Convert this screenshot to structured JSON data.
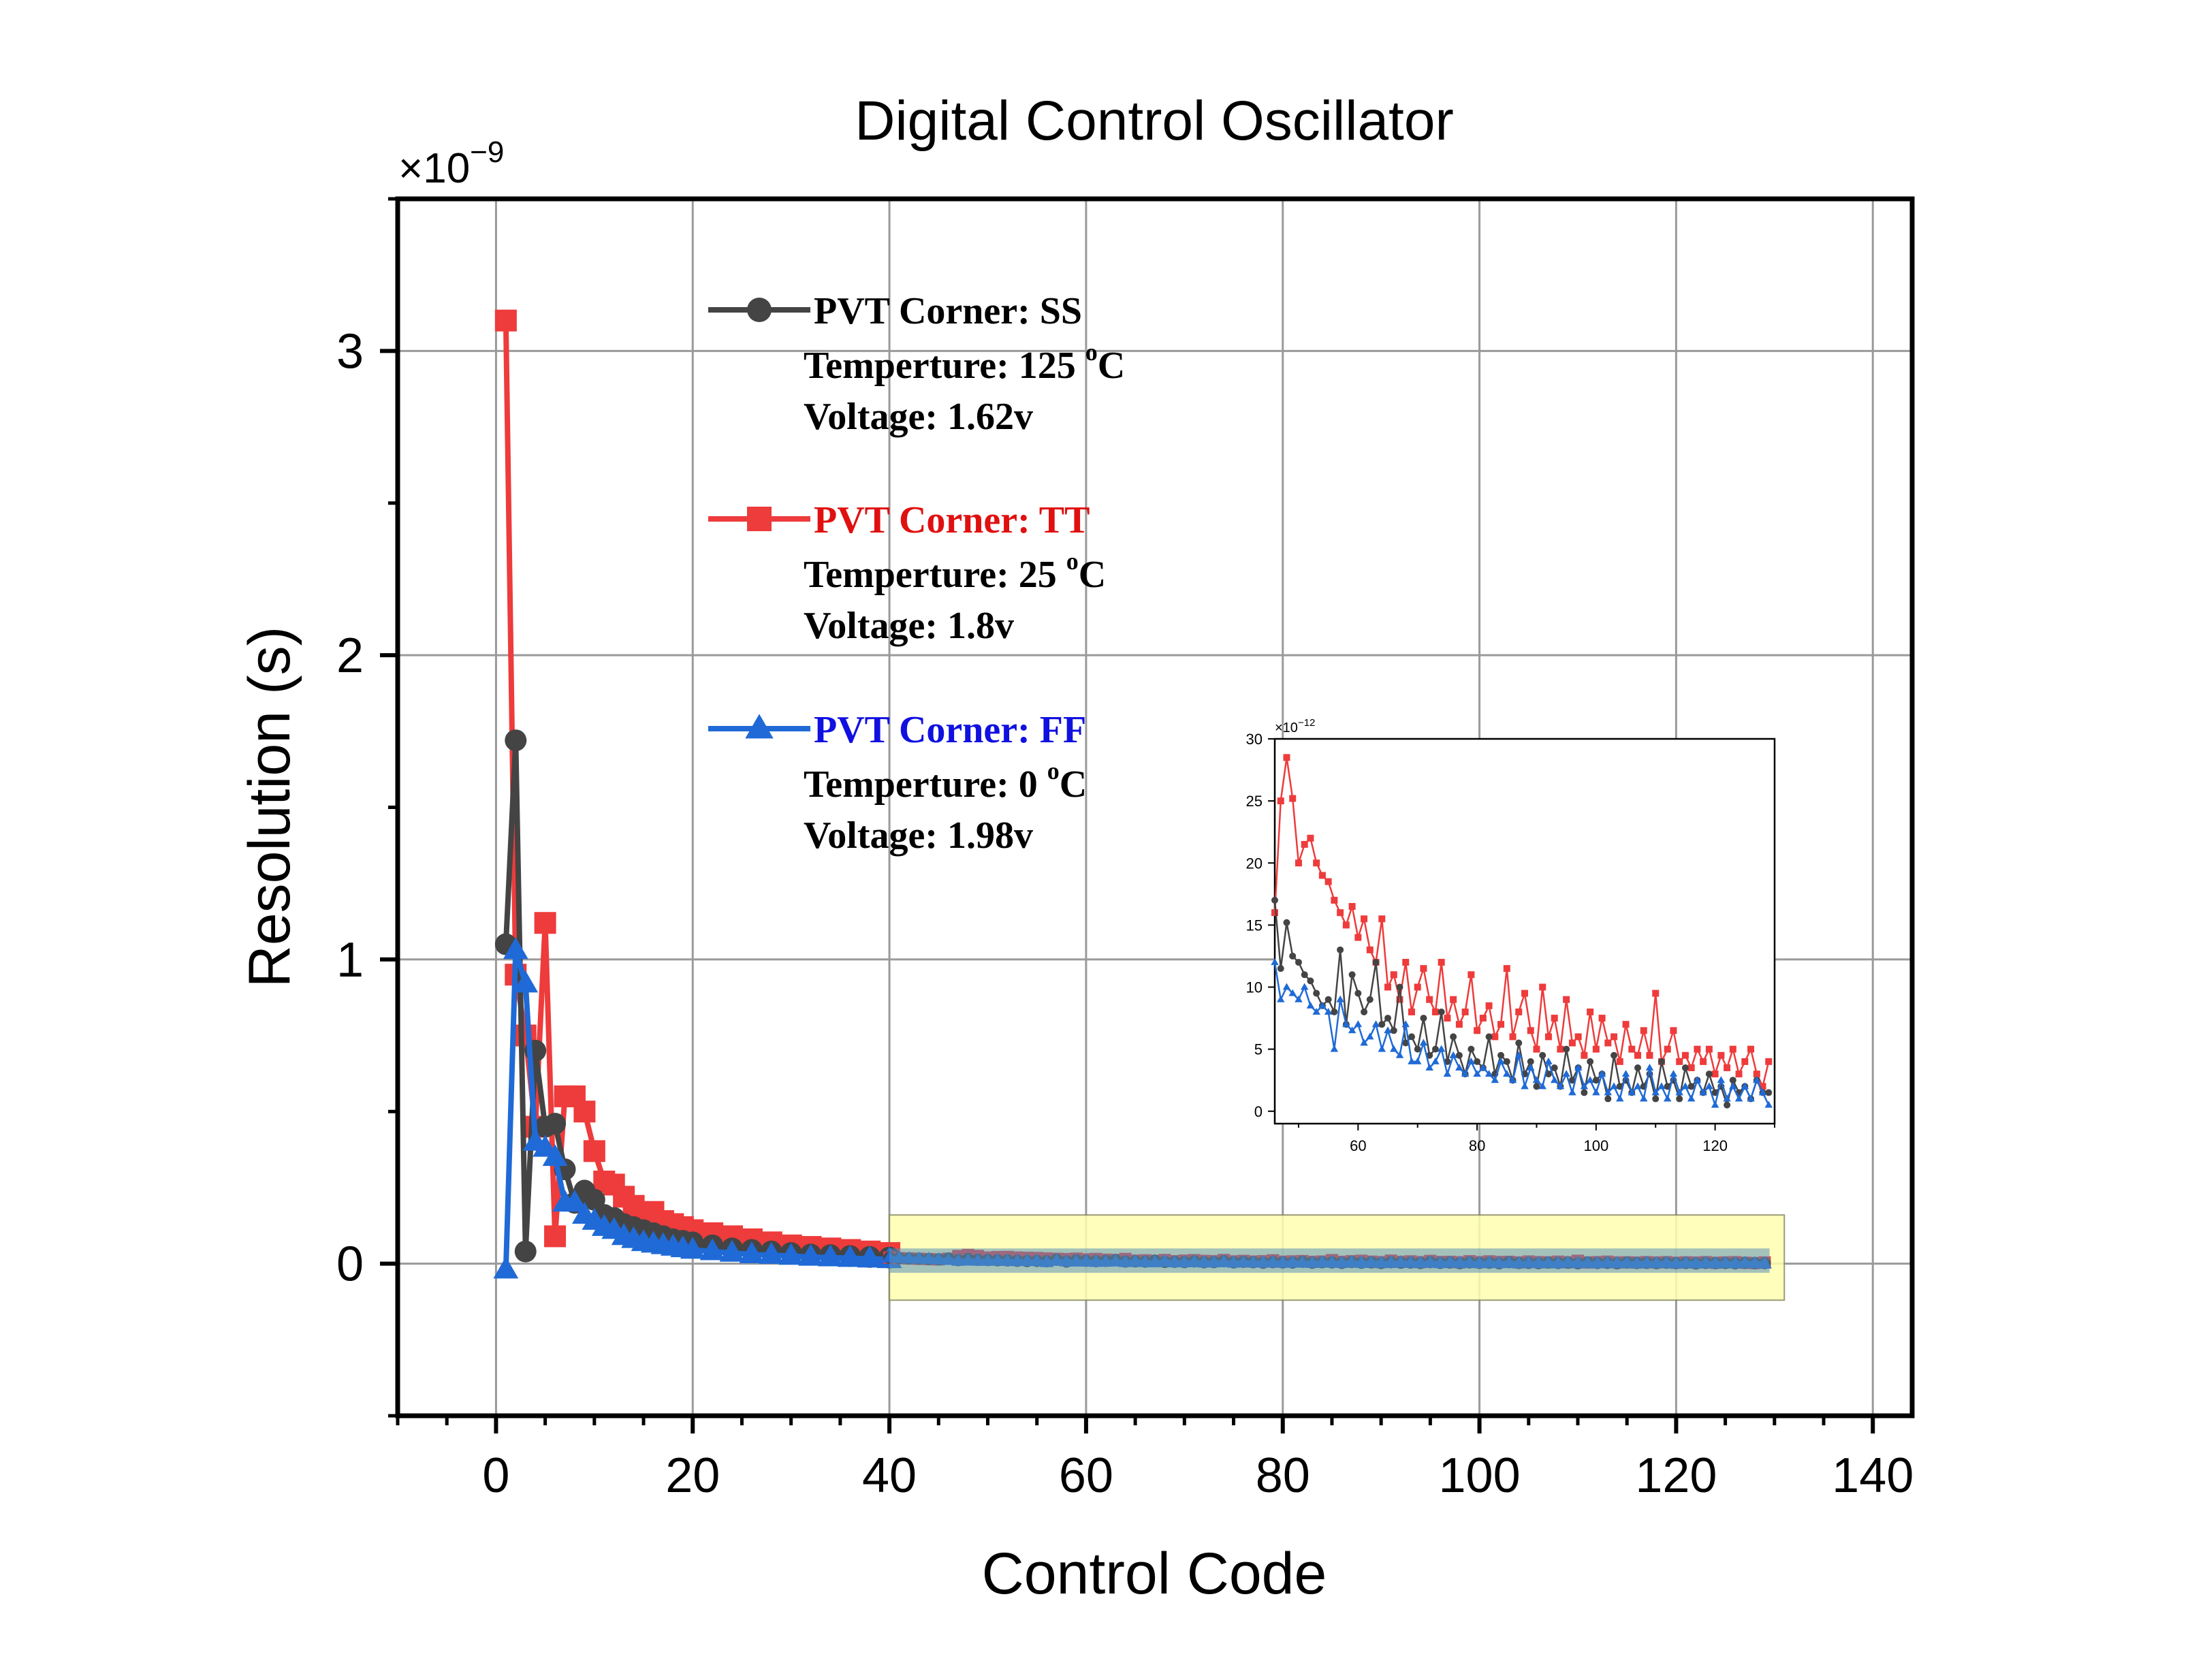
{
  "chart_data": {
    "type": "line",
    "title": "Digital Control Oscillator",
    "xlabel": "Control Code",
    "ylabel": "Resolution (s)",
    "y_multiplier": "×10",
    "y_multiplier_exp": "−9",
    "xlim": [
      -10,
      144
    ],
    "ylim": [
      -0.5,
      3.5
    ],
    "x_ticks": [
      "0",
      "20",
      "40",
      "60",
      "80",
      "100",
      "120",
      "140"
    ],
    "x_tick_values": [
      0,
      20,
      40,
      60,
      80,
      100,
      120,
      140
    ],
    "y_ticks": [
      "0",
      "1",
      "2",
      "3"
    ],
    "y_tick_values": [
      0,
      1,
      2,
      3
    ],
    "grid": true,
    "legend_position": "top-center",
    "series": [
      {
        "name": "PVT Corner: SS",
        "color": "#444444",
        "marker": "circle",
        "x": [
          1,
          2,
          3,
          4,
          5,
          6,
          7,
          8,
          9,
          10,
          11,
          12,
          13,
          14,
          15,
          16,
          17,
          18,
          19,
          20,
          22,
          24,
          26,
          28,
          30,
          32,
          34,
          36,
          38,
          40
        ],
        "y": [
          1.05,
          1.72,
          0.04,
          0.7,
          0.45,
          0.46,
          0.31,
          0.2,
          0.24,
          0.21,
          0.16,
          0.15,
          0.13,
          0.12,
          0.11,
          0.1,
          0.09,
          0.08,
          0.075,
          0.07,
          0.06,
          0.05,
          0.045,
          0.04,
          0.035,
          0.03,
          0.028,
          0.025,
          0.022,
          0.02
        ]
      },
      {
        "name": "PVT Corner: TT",
        "color": "#ee3b3b",
        "marker": "square",
        "x": [
          1,
          2,
          3,
          4,
          5,
          6,
          7,
          8,
          9,
          10,
          11,
          12,
          13,
          14,
          15,
          16,
          17,
          18,
          19,
          20,
          22,
          24,
          26,
          28,
          30,
          32,
          34,
          36,
          38,
          40
        ],
        "y": [
          3.1,
          0.95,
          0.75,
          0.45,
          1.12,
          0.09,
          0.55,
          0.55,
          0.5,
          0.37,
          0.27,
          0.26,
          0.22,
          0.19,
          0.16,
          0.17,
          0.14,
          0.13,
          0.12,
          0.11,
          0.1,
          0.09,
          0.08,
          0.07,
          0.06,
          0.055,
          0.05,
          0.045,
          0.04,
          0.035
        ]
      },
      {
        "name": "PVT Corner: FF",
        "color": "#1f6ad6",
        "marker": "triangle",
        "x": [
          1,
          2,
          3,
          4,
          5,
          6,
          7,
          8,
          9,
          10,
          11,
          12,
          13,
          14,
          15,
          16,
          17,
          18,
          19,
          20,
          22,
          24,
          26,
          28,
          30,
          32,
          34,
          36,
          38,
          40
        ],
        "y": [
          -0.02,
          1.03,
          0.92,
          0.4,
          0.38,
          0.35,
          0.2,
          0.2,
          0.16,
          0.14,
          0.12,
          0.11,
          0.09,
          0.08,
          0.07,
          0.065,
          0.06,
          0.055,
          0.05,
          0.045,
          0.04,
          0.035,
          0.03,
          0.028,
          0.025,
          0.022,
          0.02,
          0.018,
          0.016,
          0.014
        ]
      }
    ],
    "legend_details": [
      {
        "line1": "Temperture: 125 ",
        "sup": "o",
        "unit": "C",
        "line2": "Voltage: 1.62v"
      },
      {
        "line1": "Temperture: 25 ",
        "sup": "o",
        "unit": "C",
        "line2": "Voltage: 1.8v"
      },
      {
        "line1": "Temperture: 0 ",
        "sup": "o",
        "unit": "C",
        "line2": "Voltage: 1.98v"
      }
    ],
    "highlight_range": {
      "x": [
        40,
        131
      ],
      "y": [
        -0.12,
        0.16
      ],
      "color": "#ffffb0"
    },
    "inset": {
      "type": "line",
      "y_multiplier": "×10",
      "y_multiplier_exp": "−12",
      "xlim": [
        46,
        130
      ],
      "ylim": [
        -1,
        30
      ],
      "x_ticks": [
        "60",
        "80",
        "100",
        "120"
      ],
      "x_tick_values": [
        60,
        80,
        100,
        120
      ],
      "y_ticks": [
        "0",
        "5",
        "10",
        "15",
        "20",
        "25",
        "30"
      ],
      "y_tick_values": [
        0,
        5,
        10,
        15,
        20,
        25,
        30
      ],
      "x": [
        46,
        47,
        48,
        49,
        50,
        51,
        52,
        53,
        54,
        55,
        56,
        57,
        58,
        59,
        60,
        61,
        62,
        63,
        64,
        65,
        66,
        67,
        68,
        69,
        70,
        71,
        72,
        73,
        74,
        75,
        76,
        77,
        78,
        79,
        80,
        81,
        82,
        83,
        84,
        85,
        86,
        87,
        88,
        89,
        90,
        91,
        92,
        93,
        94,
        95,
        96,
        97,
        98,
        99,
        100,
        101,
        102,
        103,
        104,
        105,
        106,
        107,
        108,
        109,
        110,
        111,
        112,
        113,
        114,
        115,
        116,
        117,
        118,
        119,
        120,
        121,
        122,
        123,
        124,
        125,
        126,
        127,
        128,
        129
      ],
      "series": [
        {
          "name": "PVT Corner: SS",
          "color": "#444444",
          "y": [
            17,
            11.5,
            15.2,
            12.5,
            12,
            11,
            10.5,
            9.5,
            8.5,
            9,
            8,
            13,
            7,
            11,
            9.5,
            8,
            9,
            12,
            7,
            7.5,
            6.5,
            10,
            5.5,
            6,
            5,
            7.5,
            4.5,
            5,
            8,
            4,
            6,
            4.5,
            3,
            5,
            4,
            3.5,
            6,
            3,
            4.5,
            4,
            2.5,
            5.5,
            3,
            4,
            2,
            4.5,
            3,
            3.5,
            2,
            5,
            2.5,
            3.5,
            1.5,
            4,
            2.5,
            3,
            1,
            4.5,
            2,
            2.5,
            1.5,
            3.5,
            2,
            3,
            1,
            4,
            2,
            2.5,
            1,
            3.5,
            2,
            2.5,
            1.5,
            3,
            1.5,
            2,
            0.5,
            2.5,
            1.5,
            2,
            1,
            2.5,
            1.5,
            1.5
          ]
        },
        {
          "name": "PVT Corner: TT",
          "color": "#ee3b3b",
          "y": [
            16,
            25,
            28.5,
            25.2,
            20,
            21.5,
            22,
            20,
            19,
            18.5,
            17,
            16,
            15,
            16.5,
            14,
            15.5,
            13,
            12,
            15.5,
            10,
            11,
            9,
            12,
            8,
            10,
            11.5,
            9,
            8,
            12,
            7.5,
            9,
            7,
            8,
            11,
            6.5,
            7.5,
            8.5,
            6,
            7,
            11.5,
            6,
            8,
            9.5,
            6.5,
            5,
            10,
            6,
            7.5,
            5,
            9,
            5.5,
            6,
            4.5,
            8,
            5,
            7.5,
            5.5,
            6,
            4,
            7,
            5,
            4.5,
            6.5,
            4.5,
            9.5,
            4,
            5,
            6.5,
            4,
            4.5,
            3.5,
            5,
            4,
            5,
            3,
            4.5,
            3.5,
            5,
            3,
            4,
            5,
            3,
            2,
            4
          ]
        },
        {
          "name": "PVT Corner: FF",
          "color": "#1f6ad6",
          "y": [
            12,
            9,
            10,
            9.5,
            9,
            10,
            8.5,
            8,
            8.5,
            8,
            5,
            9,
            7,
            6.5,
            7,
            5.5,
            6,
            7,
            5,
            6.5,
            5,
            4.5,
            7,
            4,
            4,
            5.5,
            3.5,
            4,
            5,
            3,
            4.5,
            3.5,
            3,
            4,
            3,
            3.5,
            3,
            2.5,
            4,
            3,
            2.5,
            4.5,
            2,
            3.5,
            2.5,
            2,
            4,
            2.5,
            2,
            3,
            1.5,
            3.5,
            2,
            2.5,
            1.5,
            3,
            1.5,
            2,
            1,
            3,
            1.5,
            2,
            1,
            3.5,
            1.5,
            2,
            1,
            3,
            1.5,
            2,
            1,
            2.5,
            1.5,
            2,
            0.5,
            2.5,
            1,
            2,
            1,
            2,
            1,
            2.5,
            1.5,
            0.5
          ]
        }
      ]
    }
  }
}
